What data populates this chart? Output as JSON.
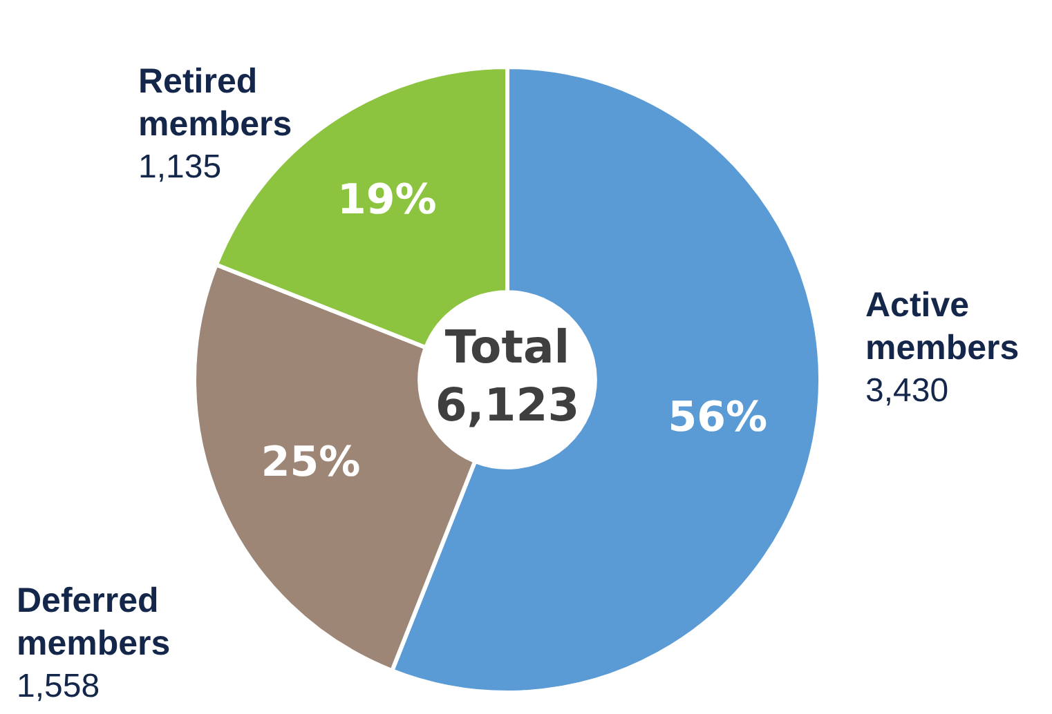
{
  "chart_data": {
    "type": "donut",
    "categories": [
      "Active members",
      "Deferred members",
      "Retired members"
    ],
    "values": [
      56,
      25,
      19
    ],
    "colors": [
      "#5b9bd5",
      "#9e8677",
      "#8cc43f"
    ],
    "value_labels": [
      "56%",
      "25%",
      "19%"
    ],
    "annotations": [
      "Total",
      "6,123",
      "3,430",
      "1,558",
      "1,135"
    ],
    "legend": false
  }
}
